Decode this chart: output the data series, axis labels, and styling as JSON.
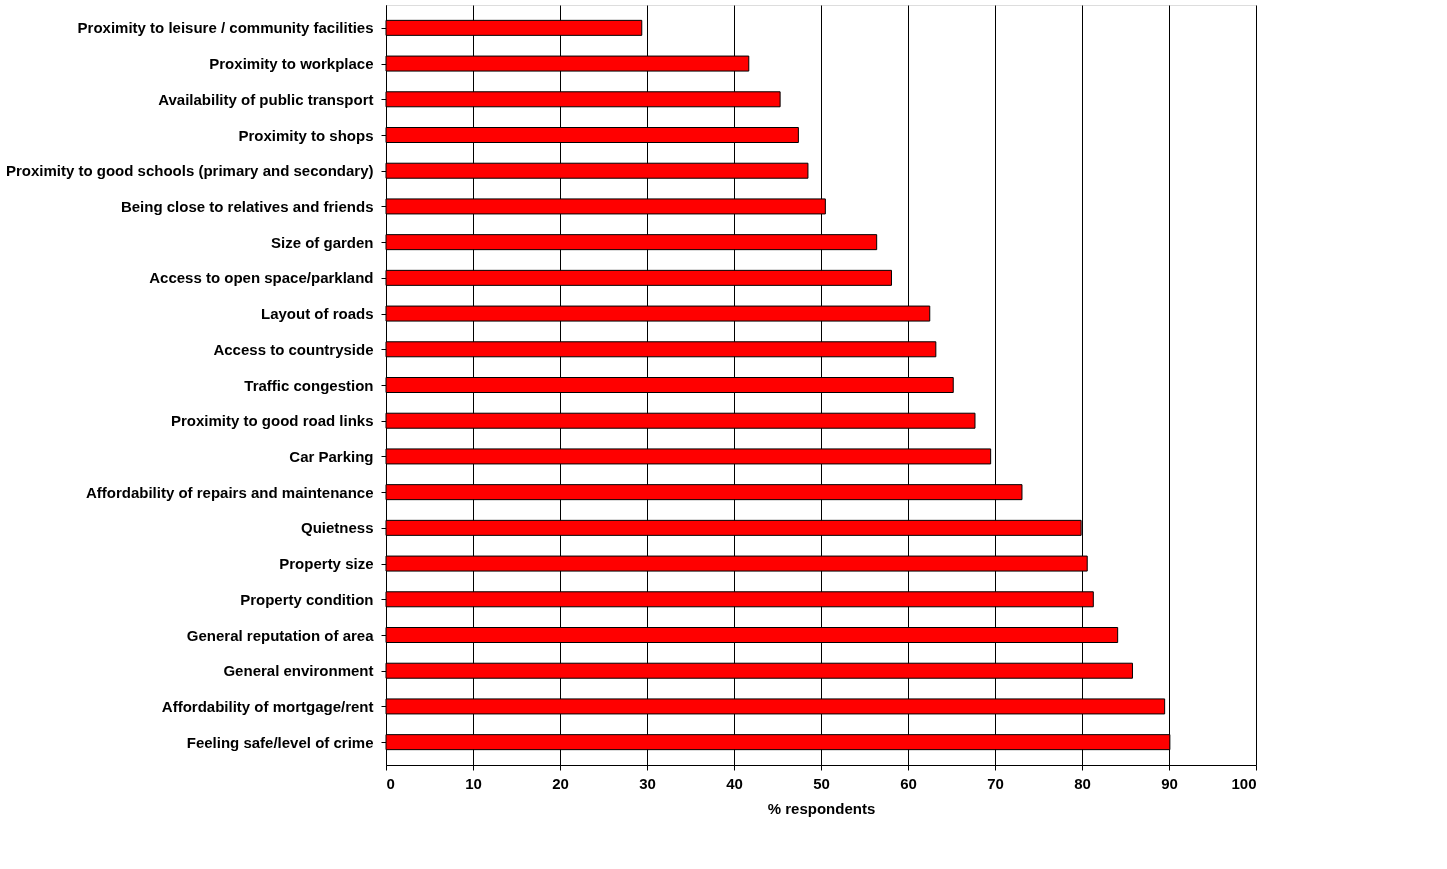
{
  "chart_data": {
    "type": "bar",
    "orientation": "horizontal",
    "xlabel": "% respondents",
    "categories": [
      "Proximity to leisure / community facilities",
      "Proximity to workplace",
      "Availability of public transport",
      "Proximity to shops",
      "Proximity to good schools (primary and secondary)",
      "Being close to relatives and friends",
      "Size of garden",
      "Access to open space/parkland",
      "Layout of roads",
      "Access to countryside",
      "Traffic congestion",
      "Proximity to good road links",
      "Car Parking",
      "Affordability of repairs and maintenance",
      "Quietness",
      "Property size",
      "Property condition",
      "General reputation of area",
      "General environment",
      "Affordability of mortgage/rent",
      "Feeling safe/level of crime"
    ],
    "values": [
      29.4,
      41.7,
      45.3,
      47.4,
      48.5,
      50.5,
      56.4,
      58.1,
      62.5,
      63.2,
      65.2,
      67.7,
      69.5,
      73.1,
      79.9,
      80.6,
      81.3,
      84.1,
      85.8,
      89.5,
      90.1
    ],
    "color": "#ff0000",
    "xlim": [
      0,
      100
    ],
    "xticks": [
      0,
      10,
      20,
      30,
      40,
      50,
      60,
      70,
      80,
      90,
      100
    ],
    "grid": "x"
  }
}
